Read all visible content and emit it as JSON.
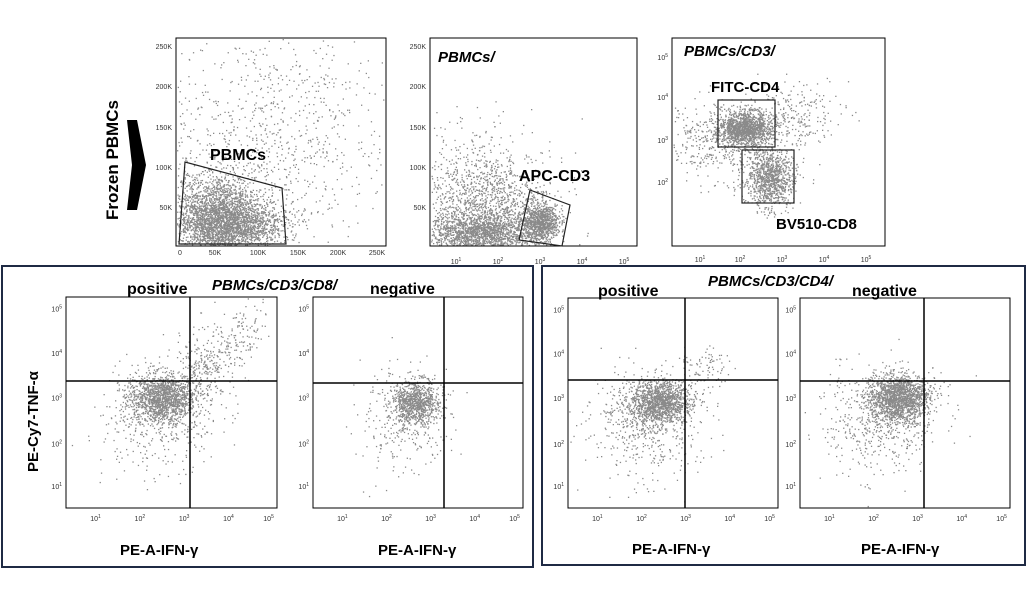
{
  "left_label": "Frozen PBMCs",
  "top_row": {
    "plot1": {
      "gate_label": "PBMCs",
      "y_ticks": [
        "250K",
        "200K",
        "150K",
        "100K",
        "50K"
      ],
      "x_ticks": [
        "0",
        "50K",
        "100K",
        "150K",
        "200K",
        "250K"
      ]
    },
    "plot2": {
      "title": "PBMCs/",
      "gate_label": "APC-CD3",
      "y_ticks": [
        "250K",
        "200K",
        "150K",
        "100K",
        "50K"
      ],
      "x_ticks": [
        "10^1",
        "10^2",
        "10^3",
        "10^4",
        "10^5"
      ]
    },
    "plot3": {
      "title": "PBMCs/CD3/",
      "gate_label_1": "FITC-CD4",
      "gate_label_2": "BV510-CD8",
      "y_ticks": [
        "10^5",
        "10^4",
        "10^3",
        "10^2"
      ],
      "x_ticks": [
        "10^1",
        "10^2",
        "10^3",
        "10^4",
        "10^5"
      ]
    }
  },
  "panel_cd8": {
    "title": "PBMCs/CD3/CD8/",
    "ylabel": "PE-Cy7-TNF-α",
    "left": {
      "label": "positive",
      "xlabel": "PE-A-IFN-γ"
    },
    "right": {
      "label": "negative",
      "xlabel": "PE-A-IFN-γ"
    }
  },
  "panel_cd4": {
    "title": "PBMCs/CD3/CD4/",
    "left": {
      "label": "positive",
      "xlabel": "PE-A-IFN-γ"
    },
    "right": {
      "label": "negative",
      "xlabel": "PE-A-IFN-γ"
    }
  },
  "log_ticks": [
    "10^1",
    "10^2",
    "10^3",
    "10^4",
    "10^5"
  ],
  "colors": {
    "dots": "#8a8a8a",
    "frame": "#1f2a44",
    "axis": "#000000"
  }
}
